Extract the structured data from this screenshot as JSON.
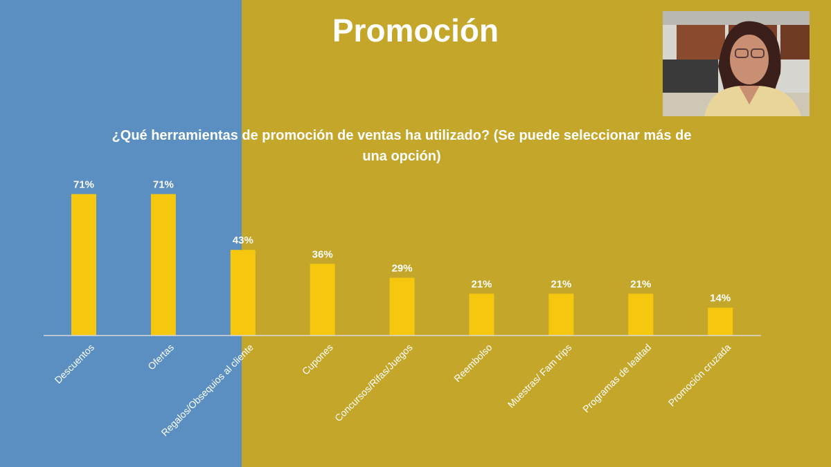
{
  "slide": {
    "title": "Promoción"
  },
  "webcam": {
    "description_icon": "presenter-video-thumbnail"
  },
  "colors": {
    "left_panel": "#5b8fc1",
    "right_panel": "#c4a62a",
    "bar": "#f5c80f",
    "text": "#ffffff",
    "axis": "#d9d9d9"
  },
  "chart_data": {
    "type": "bar",
    "title": "¿Qué herramientas de promoción de ventas ha utilizado? (Se puede seleccionar más de una opción)",
    "categories": [
      "Descuentos",
      "Ofertas",
      "Regalos/Obsequios al cliente",
      "Cupones",
      "Concursos/Rifas/Juegos",
      "Reembolso",
      "Muestras/ Fam trips",
      "Programas de lealtad",
      "Promoción cruzada"
    ],
    "values": [
      71,
      71,
      43,
      36,
      29,
      21,
      21,
      21,
      14
    ],
    "value_labels": [
      "71%",
      "71%",
      "43%",
      "36%",
      "29%",
      "21%",
      "21%",
      "21%",
      "14%"
    ],
    "unit": "%",
    "ylim": [
      0,
      100
    ],
    "grid": false,
    "legend": "none"
  }
}
